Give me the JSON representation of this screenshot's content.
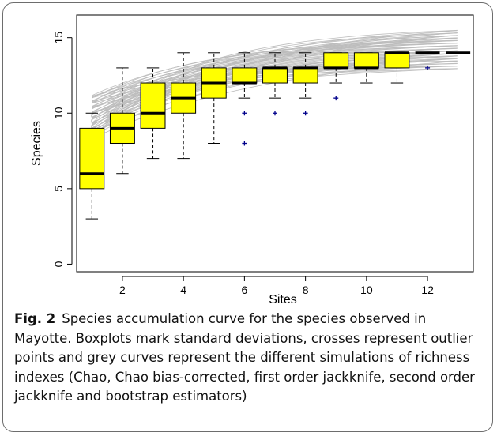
{
  "figure": {
    "label": "Fig. 2",
    "caption": "Species accumulation curve for the species observed in Mayotte. Boxplots mark standard deviations, crosses represent outlier points and grey curves represent the different simulations of richness indexes (Chao, Chao bias-corrected, first order jackknife, second order jackknife and bootstrap estimators)"
  },
  "chart_data": {
    "type": "boxplot",
    "title": "",
    "xlabel": "Sites",
    "ylabel": "Species",
    "xlim": [
      0.5,
      13.5
    ],
    "ylim": [
      -0.5,
      16.5
    ],
    "x_ticks": [
      2,
      4,
      6,
      8,
      10,
      12
    ],
    "y_ticks": [
      0,
      5,
      10,
      15
    ],
    "box_fill": "#ffff00",
    "curve_color": "#bdbdbd",
    "outlier_color": "#00008b",
    "boxes": [
      {
        "site": 1,
        "min": 3,
        "q1": 5,
        "median": 6,
        "q3": 9,
        "max": 10,
        "outliers": []
      },
      {
        "site": 2,
        "min": 6,
        "q1": 8,
        "median": 9,
        "q3": 10,
        "max": 13,
        "outliers": []
      },
      {
        "site": 3,
        "min": 7,
        "q1": 9,
        "median": 10,
        "q3": 12,
        "max": 13,
        "outliers": []
      },
      {
        "site": 4,
        "min": 7,
        "q1": 10,
        "median": 11,
        "q3": 12,
        "max": 14,
        "outliers": []
      },
      {
        "site": 5,
        "min": 8,
        "q1": 11,
        "median": 12,
        "q3": 13,
        "max": 14,
        "outliers": []
      },
      {
        "site": 6,
        "min": 11,
        "q1": 12,
        "median": 12,
        "q3": 13,
        "max": 14,
        "outliers": [
          10,
          8
        ]
      },
      {
        "site": 7,
        "min": 11,
        "q1": 12,
        "median": 13,
        "q3": 13,
        "max": 14,
        "outliers": [
          10
        ]
      },
      {
        "site": 8,
        "min": 11,
        "q1": 12,
        "median": 13,
        "q3": 13,
        "max": 14,
        "outliers": [
          10
        ]
      },
      {
        "site": 9,
        "min": 12,
        "q1": 13,
        "median": 13,
        "q3": 14,
        "max": 14,
        "outliers": [
          11
        ]
      },
      {
        "site": 10,
        "min": 12,
        "q1": 13,
        "median": 13,
        "q3": 14,
        "max": 14,
        "outliers": []
      },
      {
        "site": 11,
        "min": 12,
        "q1": 13,
        "median": 14,
        "q3": 14,
        "max": 14,
        "outliers": []
      },
      {
        "site": 12,
        "min": 14,
        "q1": 14,
        "median": 14,
        "q3": 14,
        "max": 14,
        "outliers": [
          13
        ]
      },
      {
        "site": 13,
        "min": 14,
        "q1": 14,
        "median": 14,
        "q3": 14,
        "max": 14,
        "outliers": []
      }
    ],
    "curves": {
      "count": 60,
      "model": "richness simulations",
      "start_range": [
        8.3,
        11.2
      ],
      "end_range": [
        12.9,
        15.6
      ]
    }
  }
}
